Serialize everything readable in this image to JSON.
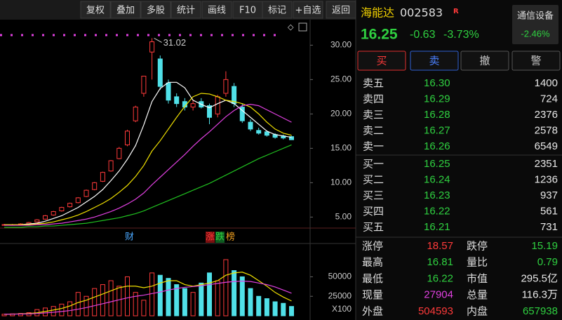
{
  "toolbar": [
    "复权",
    "叠加",
    "多股",
    "统计",
    "画线",
    "F10",
    "标记",
    "+自选",
    "返回"
  ],
  "quote": {
    "name": "海能达",
    "code": "002583",
    "badge": "R",
    "sector": "通信设备",
    "sector_change": "-2.46%",
    "price": "16.25",
    "change": "-0.63",
    "change_pct": "-3.73%"
  },
  "actions": [
    "买",
    "卖",
    "撤",
    "警"
  ],
  "order_book": {
    "asks": [
      [
        "卖五",
        "16.30",
        "1400"
      ],
      [
        "卖四",
        "16.29",
        "724"
      ],
      [
        "卖三",
        "16.28",
        "2376"
      ],
      [
        "卖二",
        "16.27",
        "2578"
      ],
      [
        "卖一",
        "16.26",
        "6549"
      ]
    ],
    "bids": [
      [
        "买一",
        "16.25",
        "2351"
      ],
      [
        "买二",
        "16.24",
        "1236"
      ],
      [
        "买三",
        "16.23",
        "937"
      ],
      [
        "买四",
        "16.22",
        "561"
      ],
      [
        "买五",
        "16.21",
        "731"
      ]
    ]
  },
  "stats": [
    [
      "涨停",
      "18.57",
      "跌停",
      "15.19"
    ],
    [
      "最高",
      "16.81",
      "量比",
      "0.79"
    ],
    [
      "最低",
      "16.22",
      "市值",
      "295.5亿"
    ],
    [
      "现量",
      "27904",
      "总量",
      "116.3万"
    ],
    [
      "外盘",
      "504593",
      "内盘",
      "657938"
    ]
  ],
  "markers": [
    "财",
    "涨",
    "跌",
    "榜"
  ],
  "chart_data": {
    "type": "candlestick",
    "open": [
      3.9,
      3.9,
      3.9,
      4.0,
      4.3,
      4.7,
      5.3,
      5.9,
      6.5,
      7.1,
      8.0,
      9.0,
      10.2,
      11.7,
      13.5,
      15.5,
      19.0,
      23.0,
      29.0,
      28.0,
      24.5,
      22.5,
      21.8,
      21.0,
      21.8,
      21.2,
      20.0,
      23.0,
      24.0,
      21.0,
      18.8,
      17.6,
      17.4,
      17.0,
      16.8,
      16.7
    ],
    "high": [
      4.0,
      4.0,
      4.1,
      4.3,
      4.7,
      5.3,
      5.9,
      6.5,
      7.1,
      7.9,
      9.0,
      10.1,
      11.6,
      13.3,
      15.2,
      17.7,
      21.2,
      25.5,
      31.02,
      28.5,
      25.0,
      23.0,
      22.3,
      22.0,
      22.3,
      21.5,
      22.8,
      26.2,
      24.5,
      21.5,
      19.2,
      18.0,
      17.6,
      17.2,
      17.0,
      16.81
    ],
    "low": [
      3.8,
      3.8,
      3.9,
      4.0,
      4.2,
      4.6,
      5.2,
      5.8,
      6.4,
      7.0,
      7.9,
      8.9,
      10.1,
      11.6,
      13.4,
      15.3,
      18.8,
      22.5,
      25.0,
      23.5,
      21.5,
      21.0,
      20.5,
      20.5,
      20.8,
      18.5,
      19.5,
      22.5,
      21.0,
      18.7,
      17.5,
      17.0,
      16.7,
      16.4,
      16.3,
      16.22
    ],
    "close": [
      3.9,
      3.9,
      4.0,
      4.2,
      4.6,
      5.2,
      5.8,
      6.4,
      7.0,
      7.8,
      8.9,
      10.0,
      11.5,
      13.2,
      15.0,
      17.5,
      21.0,
      25.5,
      30.5,
      24.0,
      22.0,
      21.5,
      21.0,
      21.5,
      21.0,
      19.5,
      22.5,
      25.0,
      21.5,
      19.0,
      17.8,
      17.2,
      16.9,
      16.6,
      16.5,
      16.25
    ],
    "ma": [
      {
        "color": "#ffffff",
        "values": [
          3.9,
          3.9,
          3.9,
          4.0,
          4.1,
          4.4,
          4.8,
          5.2,
          5.8,
          6.4,
          7.2,
          8.0,
          9.0,
          10.3,
          11.7,
          13.4,
          15.4,
          18.4,
          21.8,
          23.7,
          24.6,
          24.6,
          23.8,
          22.0,
          21.4,
          20.9,
          21.5,
          22.0,
          21.5,
          20.5,
          19.5,
          18.5,
          17.5,
          17.0,
          16.8,
          16.6
        ]
      },
      {
        "color": "#f0e000",
        "values": [
          3.9,
          3.9,
          3.9,
          3.9,
          4.0,
          4.1,
          4.3,
          4.6,
          4.9,
          5.3,
          5.8,
          6.4,
          7.0,
          7.7,
          8.6,
          9.6,
          10.9,
          12.5,
          14.6,
          16.1,
          17.8,
          19.5,
          21.1,
          22.5,
          23.0,
          22.9,
          22.5,
          22.0,
          21.8,
          21.5,
          21.0,
          20.0,
          18.8,
          17.8,
          17.2,
          16.9
        ]
      },
      {
        "color": "#e040e0",
        "values": [
          3.8,
          3.8,
          3.8,
          3.8,
          3.9,
          3.9,
          4.0,
          4.1,
          4.3,
          4.5,
          4.7,
          5.0,
          5.4,
          5.8,
          6.3,
          6.9,
          7.6,
          8.5,
          9.7,
          10.8,
          11.9,
          13.0,
          14.1,
          15.3,
          16.4,
          17.4,
          18.5,
          19.6,
          20.5,
          21.2,
          21.4,
          21.2,
          20.6,
          20.0,
          19.4,
          18.8
        ]
      },
      {
        "color": "#20c020",
        "values": [
          3.5,
          3.5,
          3.5,
          3.6,
          3.6,
          3.7,
          3.7,
          3.8,
          3.9,
          4.0,
          4.1,
          4.3,
          4.5,
          4.7,
          4.9,
          5.2,
          5.5,
          5.9,
          6.4,
          6.9,
          7.4,
          7.9,
          8.4,
          8.9,
          9.4,
          9.9,
          10.5,
          11.1,
          11.7,
          12.3,
          12.9,
          13.5,
          14.0,
          14.5,
          15.0,
          15.5
        ]
      }
    ],
    "ylim": [
      3.4,
      33.0
    ],
    "yticks": [
      {
        "value": 5,
        "label": "5.00"
      },
      {
        "value": 10,
        "label": "10.00"
      },
      {
        "value": 15,
        "label": "15.00"
      },
      {
        "value": 20,
        "label": "20.00"
      },
      {
        "value": 25,
        "label": "25.00"
      },
      {
        "value": 30,
        "label": "30.00"
      }
    ],
    "volume": [
      2000,
      2500,
      3000,
      4000,
      8000,
      10000,
      12000,
      15000,
      18000,
      30000,
      25000,
      35000,
      40000,
      45000,
      38000,
      50000,
      30000,
      20000,
      55000,
      52000,
      48000,
      40000,
      35000,
      30000,
      42000,
      55000,
      45000,
      72000,
      58000,
      50000,
      35000,
      25000,
      22000,
      18000,
      16000,
      12000
    ],
    "volume_ma": [
      {
        "color": "#f0e000",
        "values": [
          2000,
          2200,
          2500,
          2900,
          3900,
          5500,
          7400,
          9400,
          12600,
          17000,
          20000,
          24000,
          28000,
          32000,
          36000,
          38000,
          38000,
          36000,
          38000,
          42000,
          45000,
          45000,
          40000,
          38000,
          40000,
          42000,
          45000,
          52000,
          55000,
          56000,
          52000,
          45000,
          38000,
          30000,
          24000,
          19000
        ]
      },
      {
        "color": "#e040e0",
        "values": [
          2000,
          2100,
          2300,
          2500,
          3000,
          3700,
          4500,
          5500,
          6700,
          8500,
          10500,
          13000,
          15500,
          18000,
          20500,
          23000,
          25000,
          26500,
          28500,
          30500,
          33000,
          35000,
          36500,
          37500,
          38500,
          40000,
          41500,
          43000,
          44000,
          44500,
          44000,
          42000,
          40000,
          37000,
          33000,
          29000
        ]
      }
    ],
    "volume_ylim": [
      0,
      90000
    ],
    "volume_yticks": [
      25000,
      50000
    ],
    "volume_unit": "X100"
  }
}
